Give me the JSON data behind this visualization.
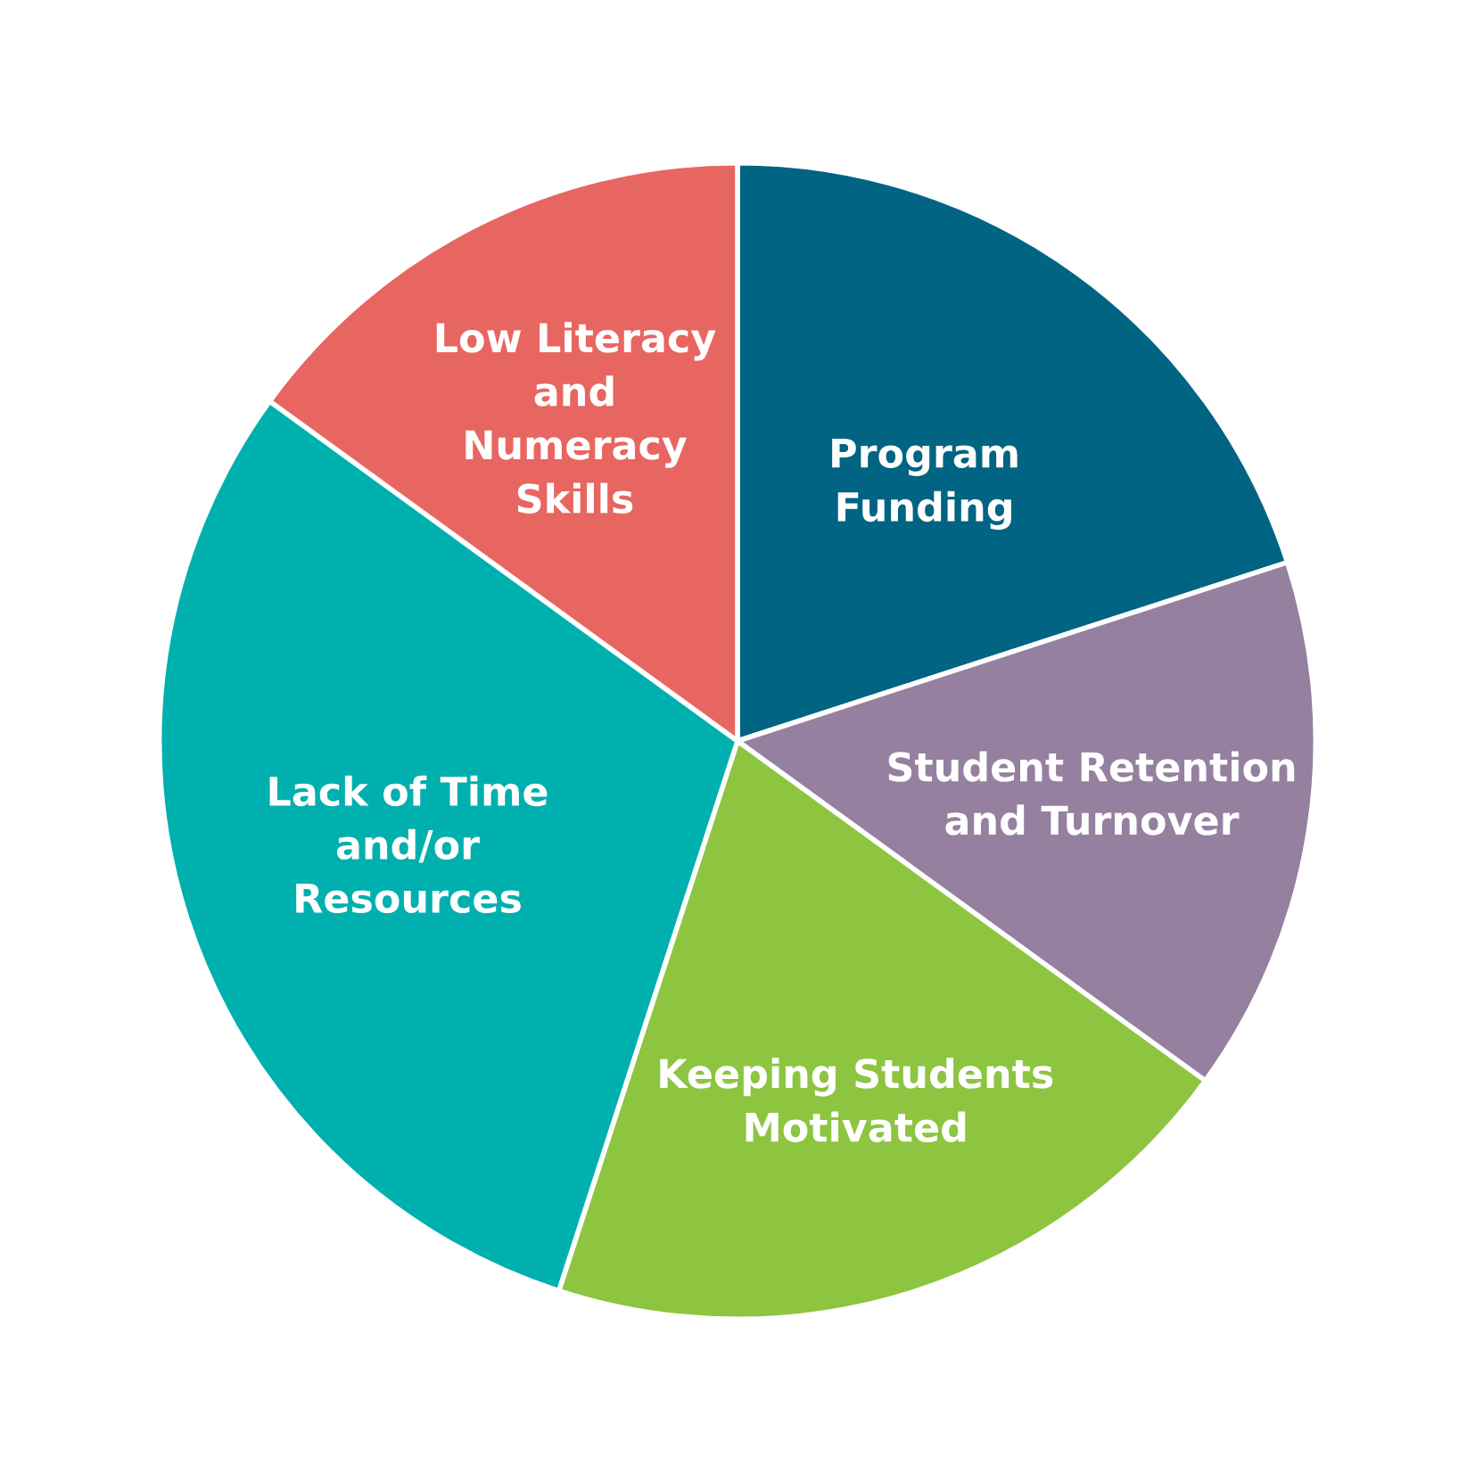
{
  "chart_data": {
    "type": "pie",
    "categories": [
      "Program\nFunding",
      "Student Retention\nand Turnover",
      "Keeping Students\nMotivated",
      "Lack of Time\nand/or\nResources",
      "Low Literacy\nand\nNumeracy\nSkills"
    ],
    "values": [
      20,
      15,
      20,
      30,
      15
    ],
    "colors": [
      "#006482",
      "#9580a0",
      "#8dc540",
      "#00b0ae",
      "#e86661"
    ],
    "legend": false
  }
}
